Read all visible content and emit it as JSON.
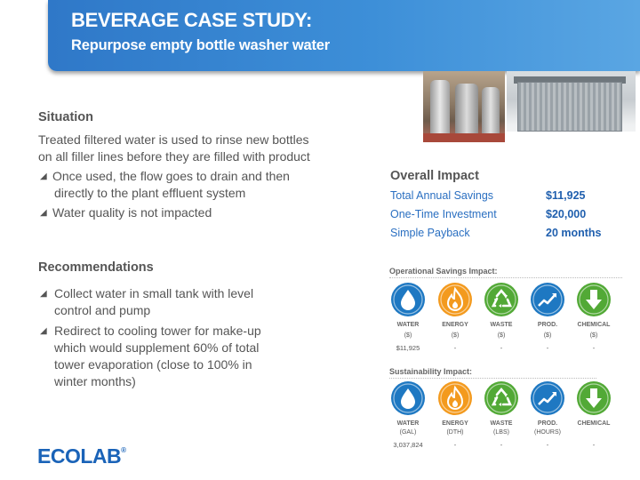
{
  "banner": {
    "title": "BEVERAGE CASE STUDY:",
    "subtitle": "Repurpose empty bottle washer water"
  },
  "situation": {
    "heading": "Situation",
    "intro_line1": "Treated filtered water is used to rinse new bottles",
    "intro_line2": "on all filler lines before they are filled with product",
    "bullets": [
      {
        "line1": "Once used, the flow goes to drain and then",
        "line2": "directly to the plant effluent system"
      },
      {
        "line1": "Water quality is not impacted"
      }
    ]
  },
  "recommendations": {
    "heading": "Recommendations",
    "bullets": [
      {
        "line1": "Collect water in small tank with level",
        "line2": "control and pump"
      },
      {
        "line1": "Redirect to cooling tower for make-up",
        "line2": "which would supplement 60% of total",
        "line3": "tower evaporation (close to 100% in",
        "line4": "winter months)"
      }
    ]
  },
  "overall_impact": {
    "title": "Overall Impact",
    "rows": [
      {
        "label": "Total Annual Savings",
        "value": "$11,925"
      },
      {
        "label": "One-Time Investment",
        "value": "$20,000"
      },
      {
        "label": "Simple Payback",
        "value": "20 months"
      }
    ]
  },
  "operational": {
    "title": "Operational Savings Impact:",
    "items": [
      {
        "label": "WATER",
        "unit": "($)",
        "value": "$11,925",
        "icon": "water-drop-icon",
        "color": "#1e78c2"
      },
      {
        "label": "ENERGY",
        "unit": "($)",
        "value": "-",
        "icon": "flame-icon",
        "color": "#f39a1e"
      },
      {
        "label": "WASTE",
        "unit": "($)",
        "value": "-",
        "icon": "recycle-icon",
        "color": "#52a936"
      },
      {
        "label": "PROD.",
        "unit": "($)",
        "value": "-",
        "icon": "trend-up-icon",
        "color": "#1e78c2"
      },
      {
        "label": "CHEMICAL",
        "unit": "($)",
        "value": "-",
        "icon": "down-arrow-icon",
        "color": "#52a936"
      }
    ]
  },
  "sustainability": {
    "title": "Sustainability Impact:",
    "items": [
      {
        "label": "WATER",
        "unit": "(GAL)",
        "value": "3,037,824",
        "icon": "water-drop-icon",
        "color": "#1e78c2"
      },
      {
        "label": "ENERGY",
        "unit": "(DTH)",
        "value": "-",
        "icon": "flame-icon",
        "color": "#f39a1e"
      },
      {
        "label": "WASTE",
        "unit": "(LBS)",
        "value": "-",
        "icon": "recycle-icon",
        "color": "#52a936"
      },
      {
        "label": "PROD.",
        "unit": "(HOURS)",
        "value": "-",
        "icon": "trend-up-icon",
        "color": "#1e78c2"
      },
      {
        "label": "CHEMICAL",
        "unit": "",
        "value": "-",
        "icon": "down-arrow-icon",
        "color": "#52a936"
      }
    ]
  },
  "logo": {
    "text": "ECOLAB",
    "mark": "®"
  }
}
